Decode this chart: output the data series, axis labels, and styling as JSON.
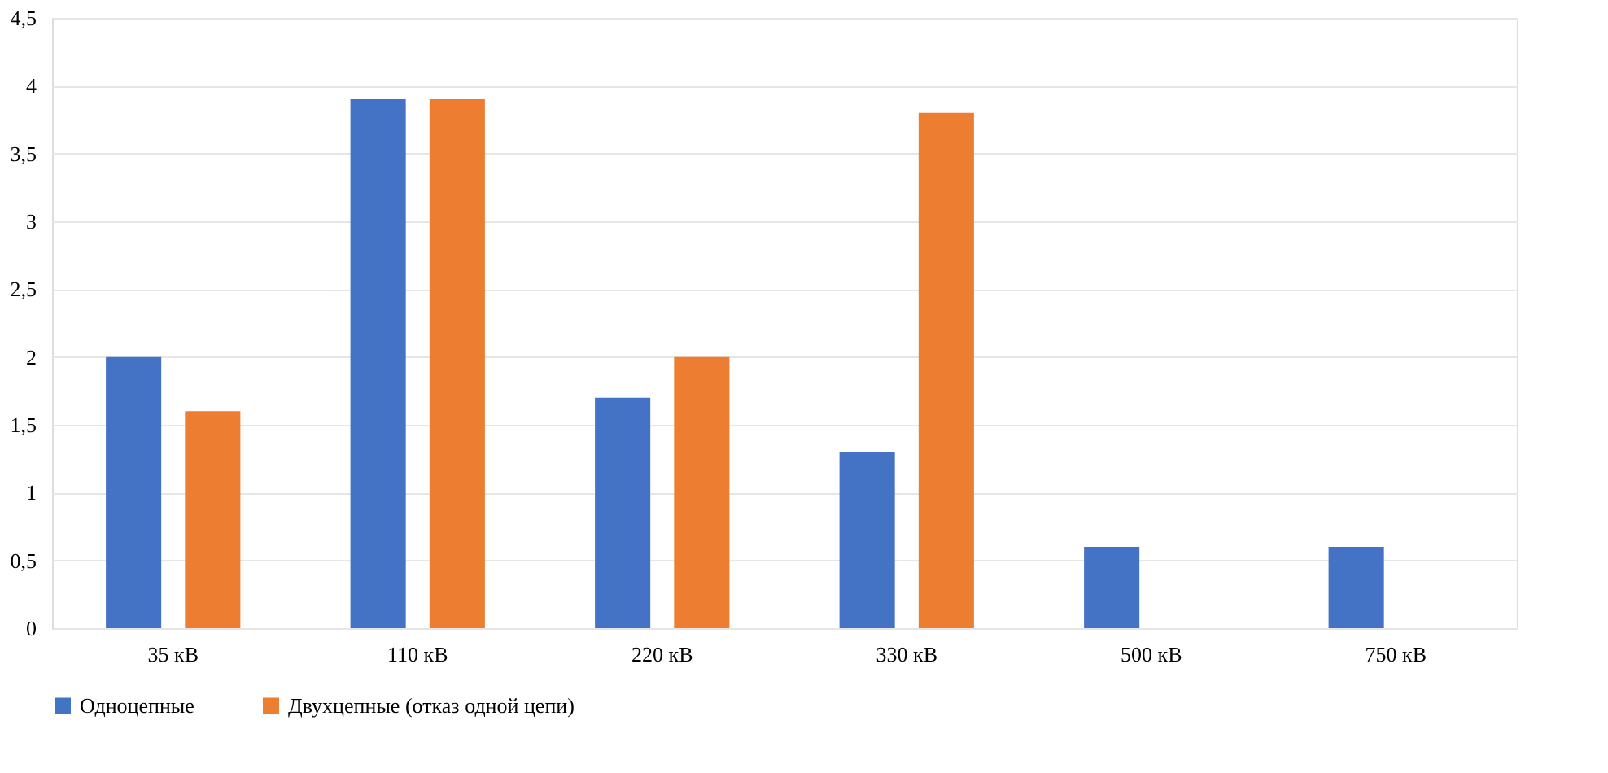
{
  "chart_data": {
    "type": "bar",
    "categories": [
      "35 кВ",
      "110 кВ",
      "220 кВ",
      "330 кВ",
      "500 кВ",
      "750 кВ"
    ],
    "series": [
      {
        "name": "Одноцепные",
        "color": "#4472c4",
        "values": [
          2.0,
          3.9,
          1.7,
          1.3,
          0.6,
          0.6
        ]
      },
      {
        "name": "Двухцепные (отказ одной цепи)",
        "color": "#ed7d31",
        "values": [
          1.6,
          3.9,
          2.0,
          3.8,
          null,
          null
        ]
      }
    ],
    "ylim": [
      0,
      4.5
    ],
    "yticks": [
      0,
      {
        "value": 0.5,
        "label": "0,5"
      },
      1,
      {
        "value": 1.5,
        "label": "1,5"
      },
      2,
      {
        "value": 2.5,
        "label": "2,5"
      },
      3,
      {
        "value": 3.5,
        "label": "3,5"
      },
      4,
      {
        "value": 4.5,
        "label": "4,5"
      }
    ],
    "grid": "y",
    "legend": "bottom"
  }
}
